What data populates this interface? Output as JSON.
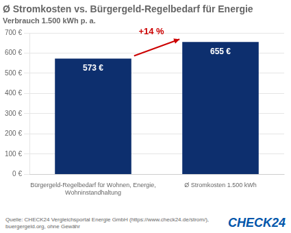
{
  "chart_data": {
    "type": "bar",
    "title": "Ø Stromkosten vs. Bürgergeld-Regelbedarf für Energie",
    "subtitle": "Verbrauch 1.500 kWh p. a.",
    "categories": [
      "Bürgergeld-Regelbedarf für Wohnen, Energie,\nWohninstandhaltung",
      "Ø Stromkosten 1.500 kWh"
    ],
    "values": [
      573,
      655
    ],
    "value_labels": [
      "573 €",
      "655 €"
    ],
    "data_labels": true,
    "color": "#0d2f6e",
    "ylim": [
      0,
      700
    ],
    "yticks": [
      {
        "value": 0,
        "label": "0 €"
      },
      {
        "value": 100,
        "label": "100 €"
      },
      {
        "value": 200,
        "label": "200 €"
      },
      {
        "value": 300,
        "label": "300 €"
      },
      {
        "value": 400,
        "label": "400 €"
      },
      {
        "value": 500,
        "label": "500 €"
      },
      {
        "value": 600,
        "label": "600 €"
      },
      {
        "value": 700,
        "label": "700 €"
      }
    ],
    "grid": true,
    "annotations": [
      {
        "text": "+14 %",
        "color": "#cc0000"
      }
    ],
    "source": "Quelle: CHECK24 Vergleichsportal Energie GmbH (https://www.check24.de/strom/), buergergeld.org, ohne Gewähr",
    "logo": {
      "text": "CHECK24",
      "color": "#0055aa"
    }
  }
}
